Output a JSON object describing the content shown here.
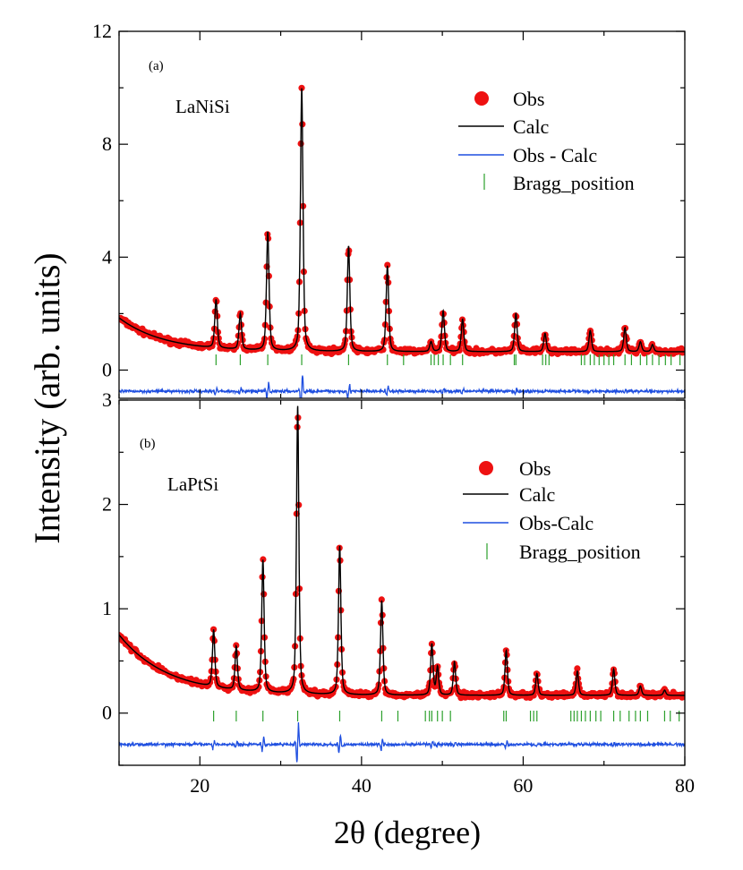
{
  "chart_data": {
    "type": "line",
    "shared": {
      "xlabel": "2θ (degree)",
      "ylabel": "Intensity (arb. units)",
      "xlim": [
        10,
        80
      ],
      "xticks": [
        20,
        40,
        60,
        80
      ],
      "colors": {
        "obs": "#ee1111",
        "calc": "#000000",
        "diff": "#1f4fe0",
        "bragg": "#2ca02c"
      }
    },
    "panels": [
      {
        "panel_label": "(a)",
        "sample": "LaNiSi",
        "ylim": [
          -1,
          12
        ],
        "yticks": [
          0,
          4,
          8,
          12
        ],
        "legend": [
          "Obs",
          "Calc",
          "Obs - Calc",
          "Bragg_position"
        ],
        "legend_position": "top-right",
        "background": {
          "start": 1.85,
          "decay": 5.5,
          "floor": 0.65
        },
        "diff_offset": -0.75,
        "peaks": [
          {
            "x": 22.0,
            "y": 2.5
          },
          {
            "x": 25.0,
            "y": 2.0
          },
          {
            "x": 28.4,
            "y": 4.9
          },
          {
            "x": 32.6,
            "y": 10.0
          },
          {
            "x": 38.4,
            "y": 4.4
          },
          {
            "x": 43.2,
            "y": 3.7
          },
          {
            "x": 48.6,
            "y": 1.0
          },
          {
            "x": 50.1,
            "y": 2.1
          },
          {
            "x": 52.5,
            "y": 1.8
          },
          {
            "x": 59.1,
            "y": 2.0
          },
          {
            "x": 62.7,
            "y": 1.3
          },
          {
            "x": 68.3,
            "y": 1.4
          },
          {
            "x": 72.6,
            "y": 1.5
          },
          {
            "x": 74.5,
            "y": 1.0
          },
          {
            "x": 76.0,
            "y": 0.9
          }
        ],
        "bragg_positions": [
          22.0,
          25.0,
          28.4,
          32.6,
          38.4,
          43.2,
          45.2,
          48.6,
          49.0,
          49.5,
          50.1,
          51.0,
          52.5,
          58.9,
          59.1,
          62.4,
          62.8,
          63.2,
          67.2,
          67.6,
          68.3,
          68.8,
          69.4,
          70.0,
          70.6,
          71.2,
          72.6,
          73.4,
          74.5,
          75.3,
          76.0,
          76.8,
          77.6,
          78.3,
          79.4
        ]
      },
      {
        "panel_label": "(b)",
        "sample": "LaPtSi",
        "ylim": [
          -0.5,
          3
        ],
        "yticks": [
          0,
          1,
          2,
          3
        ],
        "legend": [
          "Obs",
          "Calc",
          "Obs-Calc",
          "Bragg_position"
        ],
        "legend_position": "top-right",
        "background": {
          "start": 0.75,
          "decay": 6.0,
          "floor": 0.17
        },
        "diff_offset": -0.3,
        "peaks": [
          {
            "x": 21.7,
            "y": 0.8
          },
          {
            "x": 24.5,
            "y": 0.64
          },
          {
            "x": 27.8,
            "y": 1.47
          },
          {
            "x": 32.1,
            "y": 2.95
          },
          {
            "x": 37.3,
            "y": 1.6
          },
          {
            "x": 42.5,
            "y": 1.08
          },
          {
            "x": 48.7,
            "y": 0.66
          },
          {
            "x": 49.4,
            "y": 0.44
          },
          {
            "x": 51.5,
            "y": 0.49
          },
          {
            "x": 57.9,
            "y": 0.6
          },
          {
            "x": 61.7,
            "y": 0.38
          },
          {
            "x": 66.7,
            "y": 0.4
          },
          {
            "x": 71.2,
            "y": 0.42
          },
          {
            "x": 74.5,
            "y": 0.26
          },
          {
            "x": 77.5,
            "y": 0.22
          }
        ],
        "bragg_positions": [
          21.7,
          24.5,
          27.8,
          32.1,
          37.3,
          42.5,
          44.5,
          47.9,
          48.4,
          48.7,
          49.4,
          50.0,
          51.0,
          57.6,
          57.9,
          60.9,
          61.3,
          61.7,
          65.9,
          66.3,
          66.7,
          67.2,
          67.7,
          68.3,
          69.0,
          69.6,
          71.2,
          72.0,
          73.1,
          73.9,
          74.5,
          75.4,
          77.5,
          78.2,
          79.3
        ]
      }
    ]
  }
}
